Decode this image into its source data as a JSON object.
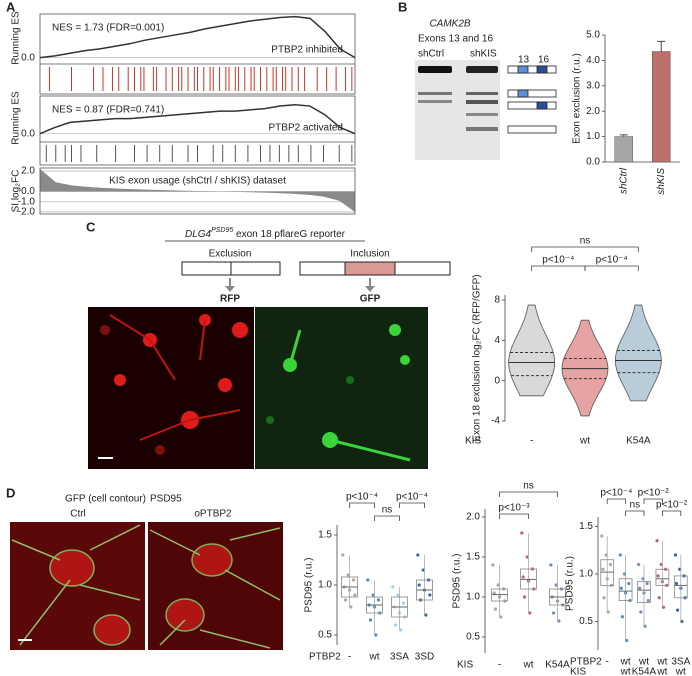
{
  "figure": {
    "panel_labels": [
      "A",
      "B",
      "C",
      "D"
    ],
    "gel": {
      "gene": "CAMK2B",
      "exons": "Exons 13 and 16",
      "lane1": "shCtrl",
      "lane2": "shKIS",
      "exon_a": "13",
      "exon_b": "16"
    },
    "reporter": {
      "gene": "DLG4",
      "superscript": "PSD95",
      "rest": " exon 18 pflareG reporter",
      "exclusion": "Exclusion",
      "inclusion": "Inclusion",
      "rfp": "RFP",
      "gfp": "GFP"
    },
    "imaging": {
      "gfp": "GFP (cell contour)",
      "psd95": "PSD95",
      "ctrl": "Ctrl",
      "treated": "oPTBP2"
    }
  },
  "chart_data": [
    {
      "type": "line",
      "ylabel": "Running ES",
      "annotation": "NES = 1.73 (FDR=0.001)",
      "title": "PTBP2 inhibited",
      "color": "#333333",
      "values": [
        0,
        0.02,
        0.05,
        0.08,
        0.1,
        0.13,
        0.16,
        0.2,
        0.23,
        0.26,
        0.29,
        0.33,
        0.36,
        0.39,
        0.42,
        0.44,
        0.46,
        0.47,
        0.45,
        0.3,
        0.1,
        0
      ],
      "ylim": [
        -0.05,
        0.5
      ],
      "yticks": [
        {
          "value": 0,
          "label": "0.0"
        }
      ],
      "hit_color": "#c0392b",
      "hits": [
        0.03,
        0.1,
        0.17,
        0.2,
        0.23,
        0.25,
        0.28,
        0.3,
        0.32,
        0.33,
        0.36,
        0.37,
        0.4,
        0.42,
        0.44,
        0.45,
        0.47,
        0.49,
        0.5,
        0.52,
        0.54,
        0.55,
        0.57,
        0.59,
        0.6,
        0.62,
        0.63,
        0.65,
        0.67,
        0.68,
        0.7,
        0.72,
        0.74,
        0.75,
        0.77,
        0.78,
        0.8,
        0.82,
        0.84,
        0.88,
        0.91,
        0.94,
        0.97,
        0.99
      ]
    },
    {
      "type": "line",
      "ylabel": "Running ES",
      "annotation": "NES = 0.87 (FDR=0.741)",
      "title": "PTBP2 activated",
      "color": "#333333",
      "values": [
        0,
        0.05,
        0.09,
        0.1,
        0.11,
        0.12,
        0.12,
        0.13,
        0.14,
        0.15,
        0.16,
        0.17,
        0.18,
        0.18,
        0.19,
        0.2,
        0.22,
        0.23,
        0.22,
        0.15,
        0.05,
        0
      ],
      "ylim": [
        -0.05,
        0.3
      ],
      "yticks": [
        {
          "value": 0,
          "label": "0.0"
        }
      ],
      "hit_color": "#555555",
      "hits": [
        0.02,
        0.05,
        0.08,
        0.1,
        0.13,
        0.18,
        0.24,
        0.3,
        0.34,
        0.38,
        0.42,
        0.47,
        0.5,
        0.55,
        0.58,
        0.62,
        0.66,
        0.7,
        0.73,
        0.76,
        0.79,
        0.82,
        0.86,
        0.9,
        0.95,
        0.99
      ]
    },
    {
      "type": "area",
      "ylabel": "SI log₂FC",
      "title": "KIS exon usage (shCtrl / shKIS) dataset",
      "color": "#8a8a8a",
      "values": [
        2.2,
        0.9,
        0.6,
        0.45,
        0.35,
        0.28,
        0.22,
        0.17,
        0.13,
        0.09,
        0.05,
        0.02,
        -0.02,
        -0.06,
        -0.1,
        -0.15,
        -0.22,
        -0.32,
        -0.5,
        -0.9,
        -2.0
      ],
      "ylim": [
        -2.2,
        2.3
      ],
      "yticks": [
        {
          "value": 2,
          "label": "2.0"
        },
        {
          "value": 0,
          "label": "0.0"
        },
        {
          "value": -1,
          "label": "-1.0"
        },
        {
          "value": -2,
          "label": "-2.0"
        }
      ]
    },
    {
      "type": "bar",
      "ylabel": "Exon exclusion (r.u.)",
      "categories": [
        "shCtrl",
        "shKIS"
      ],
      "values": [
        1.0,
        4.35
      ],
      "errors": [
        0.07,
        0.4
      ],
      "colors": [
        "#a6a6a6",
        "#c0706c"
      ],
      "ylim": [
        0,
        5
      ],
      "yticks": [
        {
          "value": 0,
          "label": "0.0"
        },
        {
          "value": 1,
          "label": "1.0"
        },
        {
          "value": 2,
          "label": "2.0"
        },
        {
          "value": 3,
          "label": "3.0"
        },
        {
          "value": 4,
          "label": "4.0"
        },
        {
          "value": 5,
          "label": "5.0"
        }
      ]
    },
    {
      "type": "violin",
      "ylabel": "Exon 18 exclusion log₂FC (RFP/GFP)",
      "xlabel": "KIS",
      "categories": [
        "-",
        "wt",
        "K54A"
      ],
      "colors": [
        "#d9d9d9",
        "#e6a3a3",
        "#b8cdd9"
      ],
      "min": [
        -1.5,
        -3.5,
        -2
      ],
      "q1": [
        0.5,
        0.2,
        0.8
      ],
      "median": [
        1.8,
        1.2,
        2.0
      ],
      "q3": [
        2.8,
        2.2,
        3.0
      ],
      "max": [
        7.5,
        6,
        7.5
      ],
      "ylim": [
        -4,
        8.5
      ],
      "yticks": [
        -4,
        0,
        4,
        8
      ],
      "annotations": [
        "ns",
        "p<10⁻⁴",
        "p<10⁻⁴"
      ]
    },
    {
      "type": "box",
      "ylabel": "PSD95 (r.u.)",
      "xlabel": "PTBP2",
      "categories": [
        "-",
        "wt",
        "3SA",
        "3SD"
      ],
      "colors": [
        "#999999",
        "#2f7fb0",
        "#8fcbe6",
        "#1f4e8c"
      ],
      "whisker_low": [
        0.78,
        0.5,
        0.55,
        0.7
      ],
      "q1": [
        0.88,
        0.72,
        0.68,
        0.85
      ],
      "median": [
        0.98,
        0.8,
        0.78,
        0.95
      ],
      "q3": [
        1.08,
        0.88,
        0.88,
        1.05
      ],
      "whisker_high": [
        1.3,
        1.05,
        0.98,
        1.3
      ],
      "points": [
        [
          1.3,
          1.1,
          1.05,
          0.98,
          0.95,
          0.9,
          0.85,
          0.78
        ],
        [
          1.05,
          0.9,
          0.85,
          0.8,
          0.78,
          0.72,
          0.65,
          0.5
        ],
        [
          0.98,
          0.9,
          0.82,
          0.78,
          0.72,
          0.68,
          0.6,
          0.55
        ],
        [
          1.3,
          1.15,
          1.05,
          1.0,
          0.95,
          0.9,
          0.85,
          0.7
        ]
      ],
      "ylim": [
        0.4,
        1.6
      ],
      "yticks": [
        0.5,
        {
          "value": 1,
          "label": "1.0"
        },
        1.5
      ],
      "annotations": [
        "p<10⁻⁴",
        "ns",
        "p<10⁻⁴"
      ]
    },
    {
      "type": "box",
      "ylabel": "PSD95 (r.u.)",
      "xlabel": "KIS",
      "categories": [
        "-",
        "wt",
        "K54A"
      ],
      "colors": [
        "#999999",
        "#b34a4a",
        "#5a7ea8"
      ],
      "whisker_low": [
        0.75,
        0.8,
        0.7
      ],
      "q1": [
        0.95,
        1.1,
        0.9
      ],
      "median": [
        1.03,
        1.22,
        1.0
      ],
      "q3": [
        1.1,
        1.35,
        1.1
      ],
      "whisker_high": [
        1.4,
        1.8,
        1.4
      ],
      "points": [
        [
          1.4,
          1.15,
          1.1,
          1.05,
          1.0,
          0.95,
          0.85,
          0.75
        ],
        [
          1.8,
          1.5,
          1.35,
          1.25,
          1.2,
          1.1,
          1.0,
          0.8
        ],
        [
          1.4,
          1.15,
          1.1,
          1.0,
          0.95,
          0.9,
          0.8,
          0.7
        ]
      ],
      "ylim": [
        0.3,
        2.1
      ],
      "yticks": [
        0.5,
        {
          "value": 1,
          "label": "1.0"
        },
        1.5,
        {
          "value": 2,
          "label": "2.0"
        }
      ],
      "annotations": [
        "ns",
        "p<10⁻³"
      ]
    },
    {
      "type": "box",
      "ylabel": "PSD95 (r.u.)",
      "xlabel": "PTBP2",
      "xlabel2": "KIS",
      "categories": [
        "-",
        "wt",
        "wt",
        "wt",
        "3SA"
      ],
      "categories2": [
        null,
        "wt",
        "K54A",
        "wt",
        "wt"
      ],
      "colors": [
        "#999999",
        "#2f7fb0",
        "#5a7ea8",
        "#b34a4a",
        "#1f4e8c"
      ],
      "whisker_low": [
        0.6,
        0.3,
        0.45,
        0.65,
        0.5
      ],
      "q1": [
        0.88,
        0.72,
        0.7,
        0.88,
        0.75
      ],
      "median": [
        1.02,
        0.82,
        0.83,
        0.95,
        0.88
      ],
      "q3": [
        1.15,
        0.95,
        0.92,
        1.05,
        0.98
      ],
      "whisker_high": [
        1.4,
        1.2,
        1.1,
        1.35,
        1.2
      ],
      "points": [
        [
          1.4,
          1.2,
          1.1,
          1.05,
          0.95,
          0.88,
          0.75,
          0.6
        ],
        [
          1.2,
          1.0,
          0.9,
          0.85,
          0.8,
          0.72,
          0.55,
          0.3
        ],
        [
          1.1,
          0.95,
          0.9,
          0.85,
          0.8,
          0.72,
          0.6,
          0.45
        ],
        [
          1.35,
          1.1,
          1.05,
          0.98,
          0.92,
          0.88,
          0.75,
          0.65
        ],
        [
          1.2,
          1.05,
          0.98,
          0.9,
          0.85,
          0.75,
          0.62,
          0.5
        ]
      ],
      "ylim": [
        0.2,
        1.6
      ],
      "yticks": [
        0.5,
        {
          "value": 1,
          "label": "1.0"
        },
        1.5
      ],
      "annotations": [
        "p<10⁻⁴",
        "ns",
        "p<10⁻²",
        "p<10⁻²"
      ]
    }
  ]
}
